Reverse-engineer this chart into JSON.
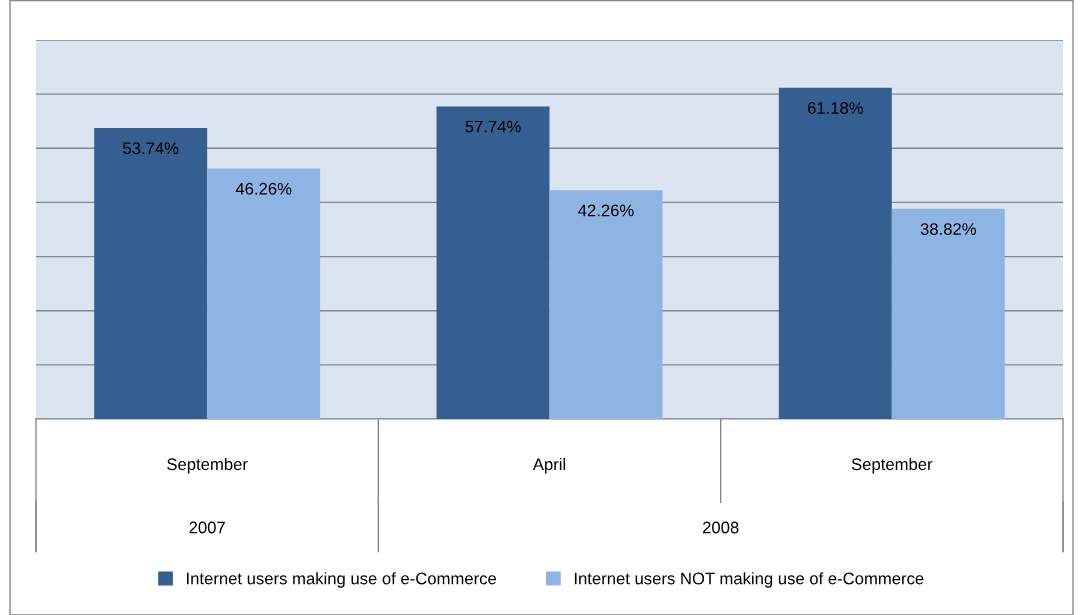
{
  "chart_data": {
    "type": "bar",
    "categories": [
      "September",
      "April",
      "September"
    ],
    "series": [
      {
        "name": "Internet users making use of e-Commerce",
        "color": "#355f91",
        "values": [
          53.74,
          57.74,
          61.18
        ],
        "value_labels": [
          "53.74%",
          "57.74%",
          "61.18%"
        ]
      },
      {
        "name": "Internet users NOT making use of e-Commerce",
        "color": "#8eb4e3",
        "values": [
          46.26,
          42.26,
          38.82
        ],
        "value_labels": [
          "46.26%",
          "42.26%",
          "38.82%"
        ]
      }
    ],
    "annotations": [
      "2007",
      "2008"
    ],
    "ylim": [
      0,
      70
    ],
    "yticks": [
      {
        "value": 0,
        "label": null
      },
      {
        "value": 10,
        "label": null
      },
      {
        "value": 20,
        "label": null
      },
      {
        "value": 30,
        "label": null
      },
      {
        "value": 40,
        "label": null
      },
      {
        "value": 50,
        "label": null
      },
      {
        "value": 60,
        "label": null
      },
      {
        "value": 70,
        "label": null
      }
    ],
    "tick_labels": "x",
    "grid": "y",
    "legend": "bottom"
  }
}
